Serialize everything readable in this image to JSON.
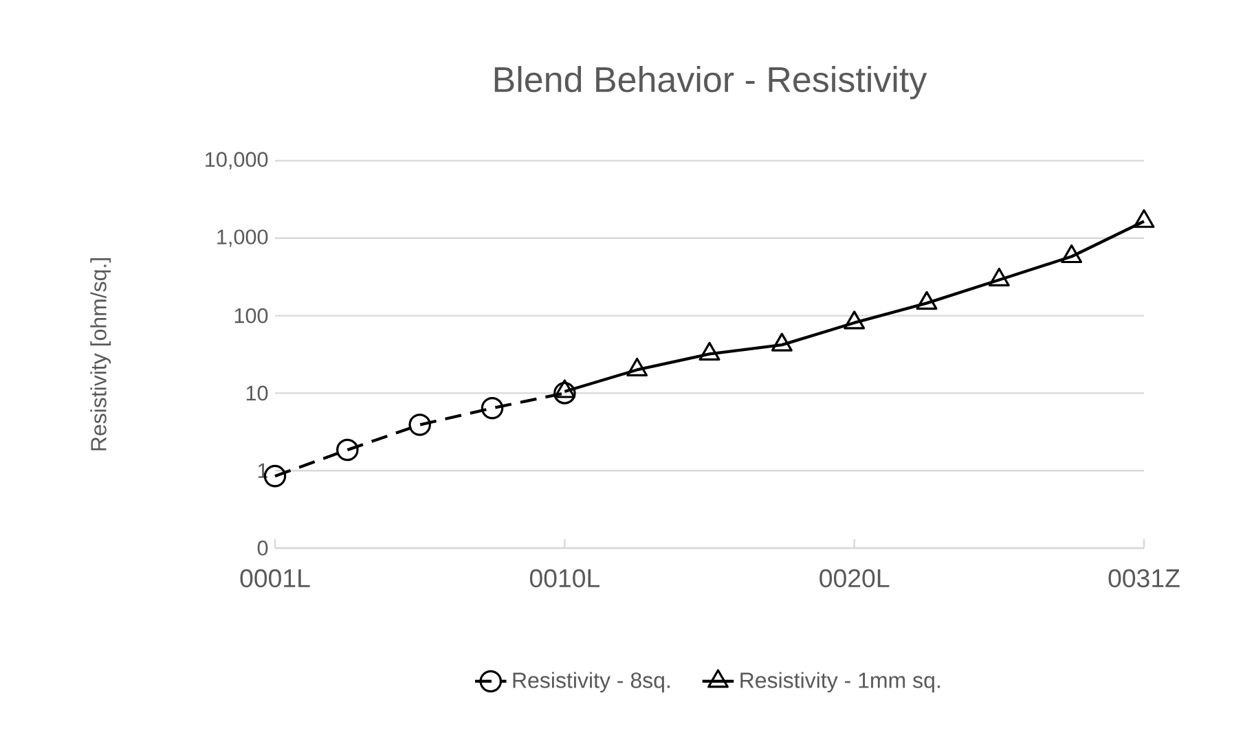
{
  "chart_data": {
    "type": "line",
    "title": "Blend Behavior - Resistivity",
    "ylabel": "Resistivity [ohm/sq.]",
    "categories": [
      "0001L",
      null,
      null,
      null,
      "0010L",
      null,
      null,
      null,
      "0020L",
      null,
      null,
      null,
      "0031Z"
    ],
    "log": true,
    "ylim": [
      0.1,
      10000
    ],
    "yticks": [
      {
        "value": 0.1,
        "label": "0"
      },
      1,
      10,
      100,
      {
        "value": 1000,
        "label": "1,000"
      },
      {
        "value": 10000,
        "label": "10,000"
      }
    ],
    "grid": "y",
    "legend": "bottom",
    "series": [
      {
        "name": "Resistivity - 8sq.",
        "color": "#000000",
        "marker": "circle",
        "line_style": "dashed",
        "values": [
          0.85,
          1.85,
          3.9,
          6.4,
          10,
          null,
          null,
          null,
          null,
          null,
          null,
          null,
          null
        ]
      },
      {
        "name": "Resistivity - 1mm sq.",
        "color": "#000000",
        "marker": "triangle",
        "line_style": "solid",
        "values": [
          null,
          null,
          null,
          null,
          10.5,
          20,
          32,
          42,
          81,
          145,
          290,
          580,
          1650
        ]
      }
    ]
  }
}
